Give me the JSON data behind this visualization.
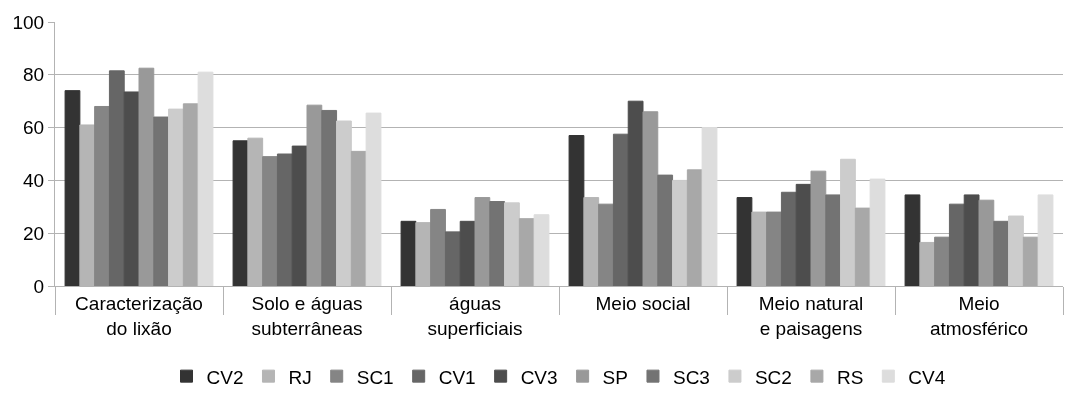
{
  "chart_data": {
    "type": "bar",
    "categories": [
      "Caracterização\ndo lixão",
      "Solo e águas\nsubterrâneas",
      "águas\nsuperficiais",
      "Meio social",
      "Meio natural\ne paisagens",
      "Meio\natmosférico"
    ],
    "series": [
      {
        "name": "CV2",
        "color": "#333333",
        "values": [
          74,
          55,
          24.5,
          57,
          33.5,
          34.5
        ]
      },
      {
        "name": "RJ",
        "color": "#b5b5b5",
        "values": [
          61,
          56,
          24,
          33.5,
          28,
          16.5
        ]
      },
      {
        "name": "SC1",
        "color": "#858585",
        "values": [
          68,
          49,
          29,
          31,
          28,
          18.5
        ]
      },
      {
        "name": "CV1",
        "color": "#666666",
        "values": [
          81.5,
          50,
          20.5,
          57.5,
          35.5,
          31
        ]
      },
      {
        "name": "CV3",
        "color": "#4d4d4d",
        "values": [
          73.5,
          53,
          24.5,
          70,
          38.5,
          34.5
        ]
      },
      {
        "name": "SP",
        "color": "#999999",
        "values": [
          82.5,
          68.5,
          33.5,
          66,
          43.5,
          32.5
        ]
      },
      {
        "name": "SC3",
        "color": "#737373",
        "values": [
          64,
          66.5,
          32,
          42,
          34.5,
          24.5
        ]
      },
      {
        "name": "SC2",
        "color": "#cccccc",
        "values": [
          67,
          62.5,
          31.5,
          40,
          48,
          26.5
        ]
      },
      {
        "name": "RS",
        "color": "#a8a8a8",
        "values": [
          69,
          51,
          25.5,
          44,
          29.5,
          18.5
        ]
      },
      {
        "name": "CV4",
        "color": "#dddddd",
        "values": [
          81,
          65.5,
          27,
          60,
          40.5,
          34.5
        ]
      }
    ],
    "ylim": [
      0,
      100
    ],
    "yticks": [
      0,
      20,
      40,
      60,
      80,
      100
    ],
    "grid": "y",
    "legend": "bottom"
  }
}
